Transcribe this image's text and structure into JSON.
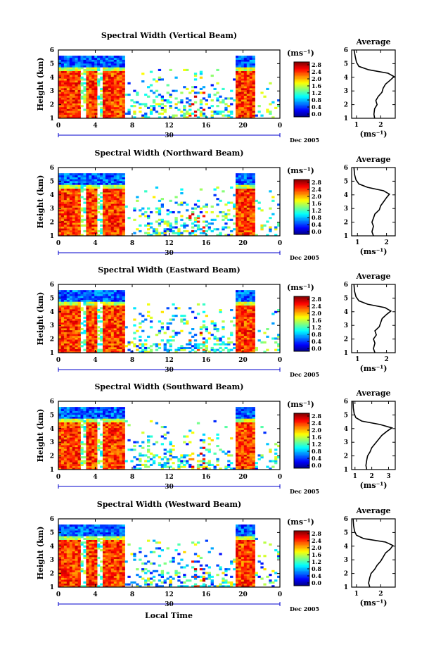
{
  "figure": {
    "date_label": "Dec 2005",
    "day_label": "30",
    "xlabel": "Local Time",
    "ylabel": "Height (km)",
    "colorbar_unit": "(ms⁻¹)",
    "profile_title": "Average",
    "profile_xlabel": "(ms⁻¹)",
    "colors": {
      "jet": [
        "#000080",
        "#0000ff",
        "#0080ff",
        "#00ffff",
        "#80ff80",
        "#ffff00",
        "#ff8000",
        "#ff0000",
        "#800000"
      ],
      "axis": "#000000",
      "date_line": "#0000cc"
    }
  },
  "chart_data": [
    {
      "type": "heatmap",
      "title": "Spectral Width (Vertical Beam)",
      "xlabel": "Local Time",
      "ylabel": "Height (km)",
      "x_ticks": [
        "0",
        "4",
        "8",
        "12",
        "16",
        "20",
        "0"
      ],
      "xlim": [
        0,
        24
      ],
      "y_ticks": [
        "1",
        "2",
        "3",
        "4",
        "5",
        "6"
      ],
      "ylim": [
        1,
        6
      ],
      "colorbar": {
        "label": "(ms⁻¹)",
        "ticks": [
          "0.0",
          "0.4",
          "0.8",
          "1.2",
          "1.6",
          "2.0",
          "2.4",
          "2.8"
        ],
        "range": [
          0,
          3.0
        ]
      },
      "precip_periods_h": [
        [
          0,
          7.2
        ],
        [
          19.3,
          21.3
        ]
      ],
      "precip_top_km": 4.5
    },
    {
      "type": "line",
      "title": "Average",
      "x_ticks": [
        "1",
        "2"
      ],
      "xlim": [
        0.8,
        2.6
      ],
      "y_ticks": [
        "1",
        "2",
        "3",
        "4",
        "5",
        "6"
      ],
      "ylim": [
        1,
        6
      ],
      "xlabel": "(ms⁻¹)",
      "x": [
        1.75,
        1.72,
        1.75,
        1.85,
        1.8,
        1.9,
        2.05,
        2.1,
        2.2,
        2.4,
        2.55,
        2.3,
        1.5,
        1.1,
        1.0,
        0.95,
        0.9
      ],
      "y": [
        1.0,
        1.3,
        1.7,
        2.0,
        2.3,
        2.6,
        2.9,
        3.2,
        3.5,
        3.8,
        4.05,
        4.3,
        4.55,
        4.8,
        5.1,
        5.5,
        6.0
      ]
    },
    {
      "type": "heatmap",
      "title": "Spectral Width (Northward Beam)",
      "xlabel": "Local Time",
      "ylabel": "Height (km)",
      "x_ticks": [
        "0",
        "4",
        "8",
        "12",
        "16",
        "20",
        "0"
      ],
      "xlim": [
        0,
        24
      ],
      "y_ticks": [
        "1",
        "2",
        "3",
        "4",
        "5",
        "6"
      ],
      "ylim": [
        1,
        6
      ],
      "colorbar": {
        "label": "(ms⁻¹)",
        "ticks": [
          "0.0",
          "0.4",
          "0.8",
          "1.2",
          "1.6",
          "2.0",
          "2.4",
          "2.8"
        ],
        "range": [
          0,
          3.0
        ]
      },
      "precip_periods_h": [
        [
          0,
          7.2
        ],
        [
          19.3,
          21.3
        ]
      ],
      "precip_top_km": 4.5
    },
    {
      "type": "line",
      "title": "Average",
      "x_ticks": [
        "1",
        "2"
      ],
      "xlim": [
        0.8,
        2.3
      ],
      "y_ticks": [
        "1",
        "2",
        "3",
        "4",
        "5",
        "6"
      ],
      "ylim": [
        1,
        6
      ],
      "xlabel": "(ms⁻¹)",
      "x": [
        1.55,
        1.5,
        1.55,
        1.5,
        1.55,
        1.6,
        1.75,
        1.8,
        1.9,
        2.0,
        2.1,
        1.9,
        1.35,
        1.05,
        0.95,
        0.9,
        0.88
      ],
      "y": [
        1.0,
        1.3,
        1.7,
        2.0,
        2.3,
        2.6,
        2.9,
        3.2,
        3.5,
        3.8,
        4.05,
        4.3,
        4.55,
        4.8,
        5.1,
        5.5,
        6.0
      ]
    },
    {
      "type": "heatmap",
      "title": "Spectral Width (Eastward Beam)",
      "xlabel": "Local Time",
      "ylabel": "Height (km)",
      "x_ticks": [
        "0",
        "4",
        "8",
        "12",
        "16",
        "20",
        "0"
      ],
      "xlim": [
        0,
        24
      ],
      "y_ticks": [
        "1",
        "2",
        "3",
        "4",
        "5",
        "6"
      ],
      "ylim": [
        1,
        6
      ],
      "colorbar": {
        "label": "(ms⁻¹)",
        "ticks": [
          "0.0",
          "0.4",
          "0.8",
          "1.2",
          "1.6",
          "2.0",
          "2.4",
          "2.8"
        ],
        "range": [
          0,
          3.0
        ]
      },
      "precip_periods_h": [
        [
          0,
          7.2
        ],
        [
          19.3,
          21.3
        ]
      ],
      "precip_top_km": 4.5
    },
    {
      "type": "line",
      "title": "Average",
      "x_ticks": [
        "1",
        "2"
      ],
      "xlim": [
        0.8,
        2.3
      ],
      "y_ticks": [
        "1",
        "2",
        "3",
        "4",
        "5",
        "6"
      ],
      "ylim": [
        1,
        6
      ],
      "xlabel": "(ms⁻¹)",
      "x": [
        1.6,
        1.55,
        1.6,
        1.55,
        1.65,
        1.6,
        1.75,
        1.8,
        1.85,
        2.0,
        2.15,
        1.95,
        1.35,
        1.05,
        0.95,
        0.9,
        0.88
      ],
      "y": [
        1.0,
        1.3,
        1.7,
        2.0,
        2.3,
        2.6,
        2.9,
        3.2,
        3.5,
        3.8,
        4.05,
        4.3,
        4.55,
        4.8,
        5.1,
        5.5,
        6.0
      ]
    },
    {
      "type": "heatmap",
      "title": "Spectral Width (Southward Beam)",
      "xlabel": "Local Time",
      "ylabel": "Height (km)",
      "x_ticks": [
        "0",
        "4",
        "8",
        "12",
        "16",
        "20",
        "0"
      ],
      "xlim": [
        0,
        24
      ],
      "y_ticks": [
        "1",
        "2",
        "3",
        "4",
        "5",
        "6"
      ],
      "ylim": [
        1,
        6
      ],
      "colorbar": {
        "label": "(ms⁻¹)",
        "ticks": [
          "0.0",
          "0.4",
          "0.8",
          "1.2",
          "1.6",
          "2.0",
          "2.4",
          "2.8"
        ],
        "range": [
          0,
          3.0
        ]
      },
      "precip_periods_h": [
        [
          0,
          7.2
        ],
        [
          19.3,
          21.3
        ]
      ],
      "precip_top_km": 4.5
    },
    {
      "type": "line",
      "title": "Average",
      "x_ticks": [
        "1",
        "2",
        "3"
      ],
      "xlim": [
        0.8,
        3.4
      ],
      "y_ticks": [
        "1",
        "2",
        "3",
        "4",
        "5",
        "6"
      ],
      "ylim": [
        1,
        6
      ],
      "xlabel": "(ms⁻¹)",
      "x": [
        1.7,
        1.65,
        1.7,
        1.75,
        1.9,
        2.0,
        2.2,
        2.4,
        2.6,
        2.9,
        3.2,
        2.5,
        1.4,
        1.05,
        0.95,
        0.9,
        0.88
      ],
      "y": [
        1.0,
        1.3,
        1.7,
        2.0,
        2.3,
        2.6,
        2.9,
        3.2,
        3.5,
        3.8,
        4.05,
        4.3,
        4.55,
        4.8,
        5.1,
        5.5,
        6.0
      ]
    },
    {
      "type": "heatmap",
      "title": "Spectral Width (Westward Beam)",
      "xlabel": "Local Time",
      "ylabel": "Height (km)",
      "x_ticks": [
        "0",
        "4",
        "8",
        "12",
        "16",
        "20",
        "0"
      ],
      "xlim": [
        0,
        24
      ],
      "y_ticks": [
        "1",
        "2",
        "3",
        "4",
        "5",
        "6"
      ],
      "ylim": [
        1,
        6
      ],
      "colorbar": {
        "label": "(ms⁻¹)",
        "ticks": [
          "0.0",
          "0.4",
          "0.8",
          "1.2",
          "1.6",
          "2.0",
          "2.4",
          "2.8"
        ],
        "range": [
          0,
          3.0
        ]
      },
      "precip_periods_h": [
        [
          0,
          7.2
        ],
        [
          19.3,
          21.3
        ]
      ],
      "precip_top_km": 4.5
    },
    {
      "type": "line",
      "title": "Average",
      "x_ticks": [
        "1",
        "2"
      ],
      "xlim": [
        0.8,
        2.6
      ],
      "y_ticks": [
        "1",
        "2",
        "3",
        "4",
        "5",
        "6"
      ],
      "ylim": [
        1,
        6
      ],
      "xlabel": "(ms⁻¹)",
      "x": [
        1.55,
        1.5,
        1.55,
        1.6,
        1.75,
        1.85,
        2.0,
        2.1,
        2.2,
        2.4,
        2.5,
        2.2,
        1.3,
        1.0,
        0.92,
        0.88,
        0.86
      ],
      "y": [
        1.0,
        1.3,
        1.7,
        2.0,
        2.3,
        2.6,
        2.9,
        3.2,
        3.5,
        3.8,
        4.05,
        4.3,
        4.55,
        4.8,
        5.1,
        5.5,
        6.0
      ]
    }
  ]
}
